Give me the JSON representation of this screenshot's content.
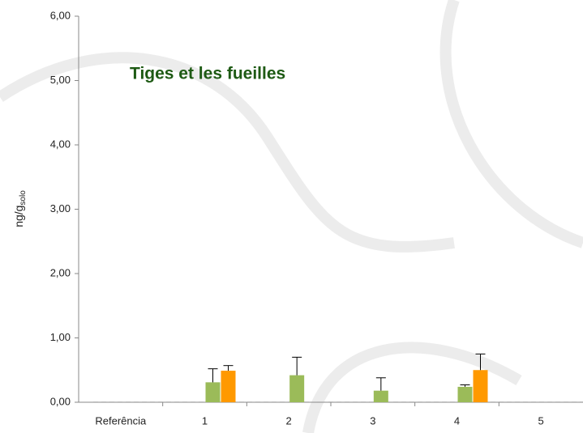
{
  "chart_data": {
    "type": "bar",
    "title": "Tiges et les fueilles",
    "y_label": "ng/g",
    "y_label_sub": "solo",
    "categories": [
      "Referência",
      "1",
      "2",
      "3",
      "4",
      "5"
    ],
    "series": [
      {
        "color": "#9bbb59",
        "values": [
          0,
          0.31,
          0.42,
          0.18,
          0.24,
          0
        ],
        "errors": [
          null,
          0.21,
          0.28,
          0.2,
          0.03,
          null
        ]
      },
      {
        "color": "#ff9900",
        "values": [
          0,
          0.49,
          0,
          0,
          0.5,
          0
        ],
        "errors": [
          null,
          0.08,
          null,
          null,
          0.25,
          null
        ]
      }
    ],
    "ylim": [
      0,
      6
    ],
    "yticks": [
      {
        "value": 0,
        "label": "0,00"
      },
      {
        "value": 1,
        "label": "1,00"
      },
      {
        "value": 2,
        "label": "2,00"
      },
      {
        "value": 3,
        "label": "3,00"
      },
      {
        "value": 4,
        "label": "4,00"
      },
      {
        "value": 5,
        "label": "5,00"
      },
      {
        "value": 6,
        "label": "6,00"
      }
    ]
  }
}
